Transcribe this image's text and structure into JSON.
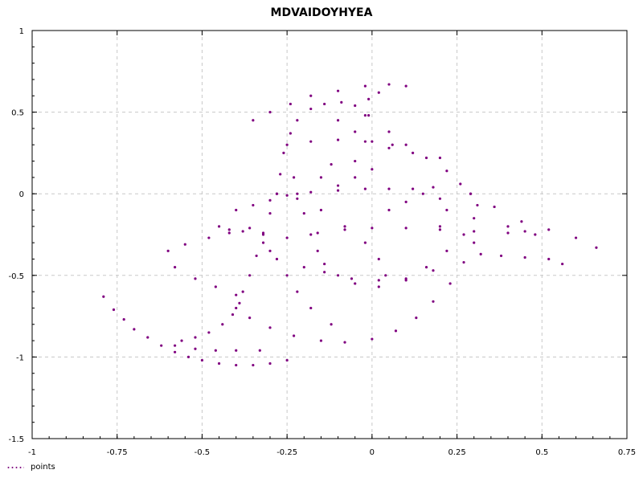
{
  "chart_data": {
    "type": "scatter",
    "title": "MDVAIDOYHYEA",
    "xlabel": "",
    "ylabel": "",
    "xlim": [
      -1,
      0.75
    ],
    "ylim": [
      -1.5,
      1
    ],
    "x_ticks": [
      {
        "value": -1,
        "label": "-1"
      },
      {
        "value": -0.75,
        "label": "-0.75"
      },
      {
        "value": -0.5,
        "label": "-0.5"
      },
      {
        "value": -0.25,
        "label": "-0.25"
      },
      {
        "value": 0,
        "label": "0"
      },
      {
        "value": 0.25,
        "label": "0.25"
      },
      {
        "value": 0.5,
        "label": "0.5"
      },
      {
        "value": 0.75,
        "label": "0.75"
      }
    ],
    "y_ticks": [
      {
        "value": 1,
        "label": "1"
      },
      {
        "value": 0.5,
        "label": "0.5"
      },
      {
        "value": 0,
        "label": "0"
      },
      {
        "value": -0.5,
        "label": "-0.5"
      },
      {
        "value": -1,
        "label": "-1"
      },
      {
        "value": -1.5,
        "label": "-1.5"
      }
    ],
    "grid": true,
    "legend_position": "bottom-left",
    "series": [
      {
        "name": "points",
        "color": "#800080",
        "marker": "dot",
        "points": [
          [
            -0.79,
            -0.63
          ],
          [
            -0.76,
            -0.71
          ],
          [
            -0.73,
            -0.77
          ],
          [
            -0.7,
            -0.83
          ],
          [
            -0.66,
            -0.88
          ],
          [
            -0.62,
            -0.93
          ],
          [
            -0.58,
            -0.97
          ],
          [
            -0.54,
            -1.0
          ],
          [
            -0.5,
            -1.02
          ],
          [
            -0.45,
            -1.04
          ],
          [
            -0.4,
            -1.05
          ],
          [
            -0.35,
            -1.05
          ],
          [
            -0.3,
            -1.04
          ],
          [
            -0.25,
            -1.02
          ],
          [
            -0.56,
            -0.9
          ],
          [
            -0.52,
            -0.88
          ],
          [
            -0.48,
            -0.85
          ],
          [
            -0.44,
            -0.8
          ],
          [
            -0.41,
            -0.74
          ],
          [
            -0.39,
            -0.67
          ],
          [
            -0.38,
            -0.6
          ],
          [
            -0.36,
            -0.5
          ],
          [
            -0.34,
            -0.38
          ],
          [
            -0.32,
            -0.25
          ],
          [
            -0.3,
            -0.12
          ],
          [
            -0.28,
            0.0
          ],
          [
            -0.27,
            0.12
          ],
          [
            -0.26,
            0.25
          ],
          [
            -0.24,
            0.37
          ],
          [
            -0.22,
            0.45
          ],
          [
            -0.18,
            0.52
          ],
          [
            -0.14,
            0.55
          ],
          [
            -0.09,
            0.56
          ],
          [
            -0.05,
            0.54
          ],
          [
            -0.02,
            0.48
          ],
          [
            -0.35,
            0.45
          ],
          [
            -0.3,
            0.5
          ],
          [
            -0.24,
            0.55
          ],
          [
            -0.18,
            0.6
          ],
          [
            -0.1,
            0.63
          ],
          [
            -0.02,
            0.66
          ],
          [
            0.05,
            0.67
          ],
          [
            0.1,
            0.66
          ],
          [
            0.02,
            0.62
          ],
          [
            -0.01,
            0.58
          ],
          [
            -0.01,
            0.48
          ],
          [
            0.05,
            0.38
          ],
          [
            0.1,
            0.3
          ],
          [
            0.16,
            0.22
          ],
          [
            0.22,
            0.14
          ],
          [
            0.26,
            0.06
          ],
          [
            0.29,
            0.0
          ],
          [
            0.31,
            -0.07
          ],
          [
            0.3,
            -0.15
          ],
          [
            0.27,
            -0.25
          ],
          [
            0.22,
            -0.35
          ],
          [
            0.16,
            -0.45
          ],
          [
            0.1,
            -0.53
          ],
          [
            0.02,
            -0.57
          ],
          [
            -0.05,
            -0.55
          ],
          [
            -0.1,
            -0.5
          ],
          [
            -0.14,
            -0.43
          ],
          [
            -0.16,
            -0.35
          ],
          [
            -0.18,
            -0.25
          ],
          [
            -0.2,
            -0.12
          ],
          [
            -0.22,
            0.0
          ],
          [
            -0.23,
            0.1
          ],
          [
            0.29,
            0.0
          ],
          [
            0.36,
            -0.08
          ],
          [
            0.44,
            -0.17
          ],
          [
            0.52,
            -0.22
          ],
          [
            0.6,
            -0.27
          ],
          [
            0.66,
            -0.33
          ],
          [
            0.48,
            -0.25
          ],
          [
            0.4,
            -0.24
          ],
          [
            0.3,
            -0.23
          ],
          [
            0.2,
            -0.22
          ],
          [
            0.1,
            -0.21
          ],
          [
            0.0,
            -0.21
          ],
          [
            -0.08,
            -0.22
          ],
          [
            -0.16,
            -0.24
          ],
          [
            -0.25,
            -0.27
          ],
          [
            -0.32,
            -0.3
          ],
          [
            -0.4,
            -0.7
          ],
          [
            -0.36,
            -0.76
          ],
          [
            -0.3,
            -0.82
          ],
          [
            -0.23,
            -0.87
          ],
          [
            -0.15,
            -0.9
          ],
          [
            -0.08,
            -0.91
          ],
          [
            0.0,
            -0.89
          ],
          [
            0.07,
            -0.84
          ],
          [
            0.13,
            -0.76
          ],
          [
            0.18,
            -0.66
          ],
          [
            0.23,
            -0.55
          ],
          [
            0.27,
            -0.42
          ],
          [
            0.3,
            -0.3
          ],
          [
            -0.4,
            -0.1
          ],
          [
            -0.35,
            -0.07
          ],
          [
            -0.3,
            -0.04
          ],
          [
            -0.25,
            -0.01
          ],
          [
            -0.18,
            0.01
          ],
          [
            -0.1,
            0.02
          ],
          [
            -0.02,
            0.03
          ],
          [
            0.05,
            0.03
          ],
          [
            0.12,
            0.03
          ],
          [
            0.18,
            0.04
          ],
          [
            -0.28,
            0.0
          ],
          [
            -0.22,
            -0.03
          ],
          [
            -0.15,
            -0.1
          ],
          [
            -0.08,
            -0.2
          ],
          [
            -0.02,
            -0.3
          ],
          [
            0.02,
            -0.4
          ],
          [
            0.04,
            -0.5
          ],
          [
            -0.1,
            0.45
          ],
          [
            -0.05,
            0.38
          ],
          [
            0.0,
            0.32
          ],
          [
            0.05,
            0.28
          ],
          [
            0.12,
            0.25
          ],
          [
            0.2,
            0.22
          ],
          [
            -0.25,
            0.3
          ],
          [
            -0.18,
            0.32
          ],
          [
            -0.1,
            0.33
          ],
          [
            -0.02,
            0.32
          ],
          [
            0.06,
            0.3
          ],
          [
            -0.2,
            -0.45
          ],
          [
            -0.14,
            -0.48
          ],
          [
            -0.06,
            -0.52
          ],
          [
            0.02,
            -0.53
          ],
          [
            0.1,
            -0.52
          ],
          [
            0.18,
            -0.47
          ],
          [
            -0.45,
            -0.2
          ],
          [
            -0.42,
            -0.22
          ],
          [
            -0.38,
            -0.23
          ],
          [
            -0.32,
            -0.24
          ],
          [
            -0.6,
            -0.35
          ],
          [
            -0.55,
            -0.31
          ],
          [
            -0.48,
            -0.27
          ],
          [
            -0.42,
            -0.24
          ],
          [
            -0.36,
            -0.21
          ],
          [
            -0.58,
            -0.45
          ],
          [
            -0.52,
            -0.52
          ],
          [
            -0.46,
            -0.57
          ],
          [
            -0.4,
            -0.62
          ],
          [
            -0.58,
            -0.93
          ],
          [
            -0.52,
            -0.95
          ],
          [
            -0.46,
            -0.96
          ],
          [
            -0.4,
            -0.96
          ],
          [
            -0.33,
            -0.96
          ],
          [
            0.4,
            -0.2
          ],
          [
            0.45,
            -0.23
          ],
          [
            0.52,
            -0.4
          ],
          [
            0.45,
            -0.39
          ],
          [
            0.38,
            -0.38
          ],
          [
            0.32,
            -0.37
          ],
          [
            0.56,
            -0.43
          ],
          [
            -0.3,
            -0.35
          ],
          [
            -0.28,
            -0.4
          ],
          [
            -0.25,
            -0.5
          ],
          [
            -0.22,
            -0.6
          ],
          [
            -0.18,
            -0.7
          ],
          [
            -0.12,
            -0.8
          ],
          [
            0.05,
            -0.1
          ],
          [
            0.1,
            -0.05
          ],
          [
            0.15,
            0.0
          ],
          [
            0.2,
            -0.03
          ],
          [
            0.22,
            -0.1
          ],
          [
            0.2,
            -0.2
          ],
          [
            -0.05,
            0.1
          ],
          [
            0.0,
            0.15
          ],
          [
            -0.05,
            0.2
          ],
          [
            -0.12,
            0.18
          ],
          [
            -0.15,
            0.1
          ],
          [
            -0.1,
            0.05
          ]
        ]
      }
    ]
  }
}
